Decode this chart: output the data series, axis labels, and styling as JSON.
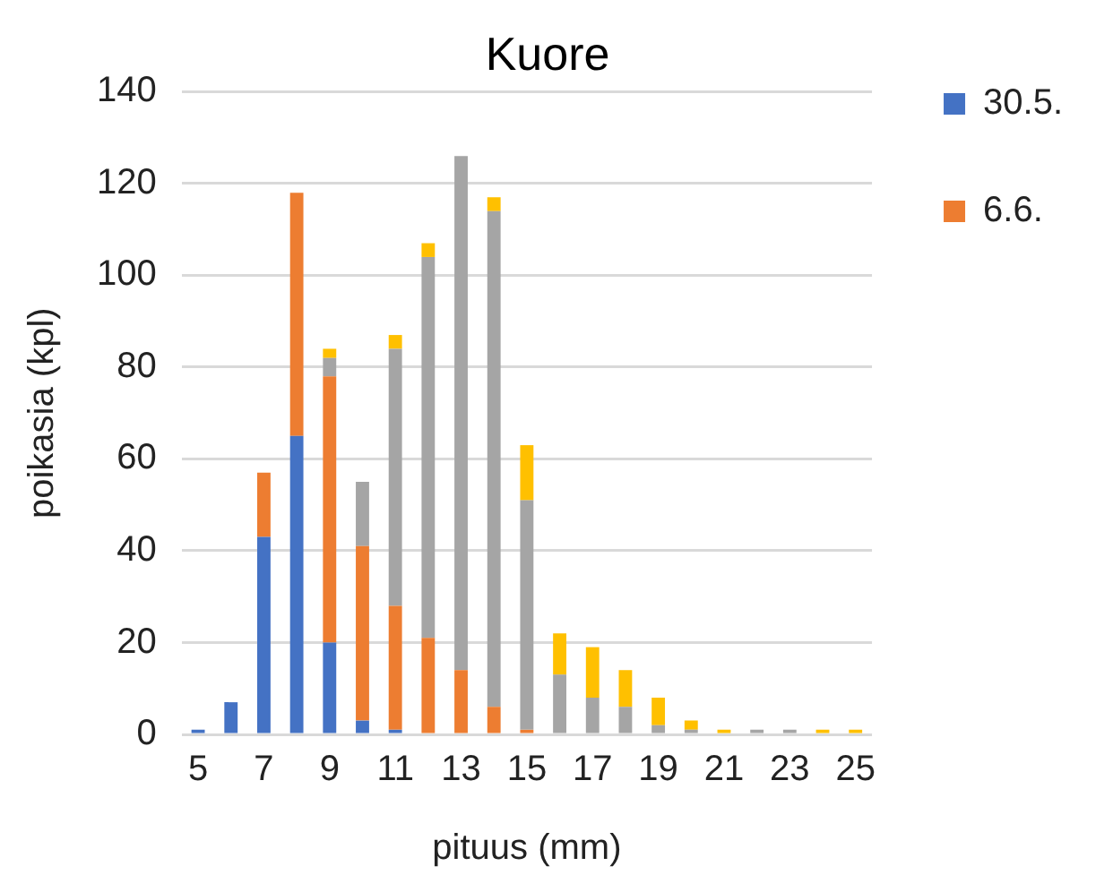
{
  "chart_data": {
    "type": "bar",
    "title": "Kuore",
    "xlabel": "pituus (mm)",
    "ylabel": "poikasia (kpl)",
    "categories": [
      "5",
      null,
      "7",
      null,
      "9",
      null,
      "11",
      null,
      "13",
      null,
      "15",
      null,
      "17",
      null,
      "19",
      null,
      "21",
      null,
      "23",
      null,
      "25"
    ],
    "stacked": true,
    "series": [
      {
        "name": "30.5.",
        "color": "#4472c4",
        "values": [
          1,
          7,
          43,
          65,
          20,
          3,
          1,
          0,
          0,
          0,
          0,
          0,
          0,
          0,
          0,
          0,
          0,
          0,
          0,
          0,
          0
        ]
      },
      {
        "name": "6.6.",
        "color": "#ed7d31",
        "values": [
          0,
          0,
          14,
          53,
          58,
          38,
          27,
          21,
          14,
          6,
          1,
          0,
          0,
          0,
          0,
          0,
          0,
          0,
          0,
          0,
          0
        ]
      },
      {
        "color": "#a5a5a5",
        "values": [
          0,
          0,
          0,
          0,
          4,
          14,
          56,
          83,
          112,
          108,
          50,
          13,
          8,
          6,
          2,
          1,
          0,
          1,
          1,
          0,
          0
        ]
      },
      {
        "color": "#ffc000",
        "values": [
          0,
          0,
          0,
          0,
          2,
          0,
          3,
          3,
          0,
          3,
          12,
          9,
          11,
          8,
          6,
          2,
          1,
          0,
          0,
          1,
          1
        ]
      }
    ],
    "ylim": [
      0,
      140
    ],
    "yticks": [
      0,
      20,
      40,
      60,
      80,
      100,
      120,
      140
    ],
    "grid": "y",
    "legend": "top right"
  }
}
